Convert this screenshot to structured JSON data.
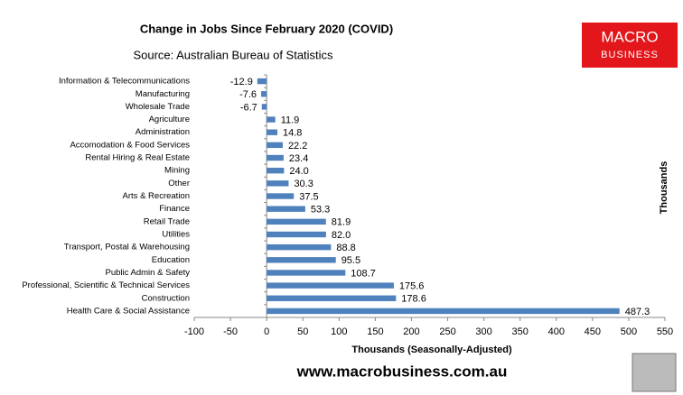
{
  "chart_data": {
    "type": "barh",
    "title": "Change in Jobs Since February 2020 (COVID)",
    "subtitle": "Source: Australian Bureau of Statistics",
    "x_label": "Thousands (Seasonally-Adjusted)",
    "right_label": "Thousands",
    "logo": [
      "MACRO",
      "BUSINESS"
    ],
    "footer": "www.macrobusiness.com.au",
    "color": "#4f81bd",
    "categories": [
      "Information & Telecommunications",
      "Manufacturing",
      "Wholesale Trade",
      "Agriculture",
      "Administration",
      "Accomodation & Food Services",
      "Rental Hiring & Real Estate",
      "Mining",
      "Other",
      "Arts & Recreation",
      "Finance",
      "Retail Trade",
      "Utilities",
      "Transport, Postal & Warehousing",
      "Education",
      "Public Admin & Safety",
      "Professional, Scientific & Technical Services",
      "Construction",
      "Health Care & Social Assistance"
    ],
    "values": [
      -12.9,
      -7.6,
      -6.7,
      11.9,
      14.8,
      22.2,
      23.4,
      24,
      30.3,
      37.5,
      53.3,
      81.9,
      82,
      88.8,
      95.5,
      108.7,
      175.6,
      178.6,
      487.3
    ],
    "value_labels": [
      "-12.9",
      "-7.6",
      "-6.7",
      "11.9",
      "14.8",
      "22.2",
      "23.4",
      "24.0",
      "30.3",
      "37.5",
      "53.3",
      "81.9",
      "82.0",
      "88.8",
      "95.5",
      "108.7",
      "175.6",
      "178.6",
      "487.3"
    ],
    "xlim": [
      -100,
      550
    ],
    "xticks": [
      -100,
      -50,
      0,
      50,
      100,
      150,
      200,
      250,
      300,
      350,
      400,
      450,
      500,
      550
    ]
  }
}
